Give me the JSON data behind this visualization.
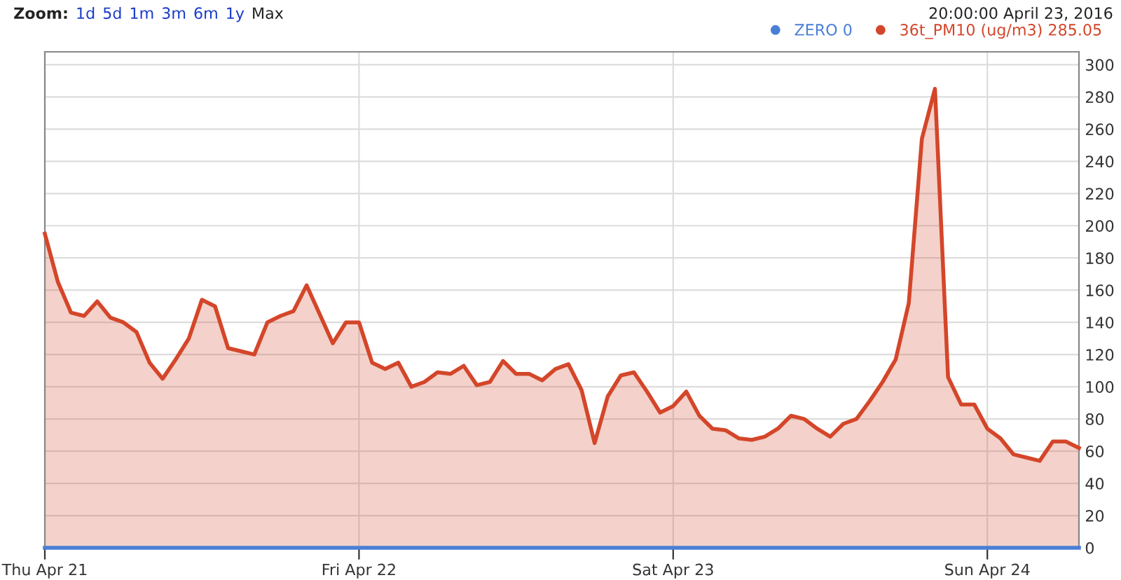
{
  "chart_data": {
    "type": "area",
    "annotations": [
      "Zoom:",
      "1d",
      "5d",
      "1m",
      "3m",
      "6m",
      "1y",
      "Max",
      "20:00:00 April 23, 2016"
    ],
    "x": [
      "2016-04-21T00:00",
      "2016-04-21T01:00",
      "2016-04-21T02:00",
      "2016-04-21T03:00",
      "2016-04-21T04:00",
      "2016-04-21T05:00",
      "2016-04-21T06:00",
      "2016-04-21T07:00",
      "2016-04-21T08:00",
      "2016-04-21T09:00",
      "2016-04-21T10:00",
      "2016-04-21T11:00",
      "2016-04-21T12:00",
      "2016-04-21T13:00",
      "2016-04-21T14:00",
      "2016-04-21T15:00",
      "2016-04-21T16:00",
      "2016-04-21T17:00",
      "2016-04-21T18:00",
      "2016-04-21T19:00",
      "2016-04-21T20:00",
      "2016-04-21T21:00",
      "2016-04-21T22:00",
      "2016-04-21T23:00",
      "2016-04-22T00:00",
      "2016-04-22T01:00",
      "2016-04-22T02:00",
      "2016-04-22T03:00",
      "2016-04-22T04:00",
      "2016-04-22T05:00",
      "2016-04-22T06:00",
      "2016-04-22T07:00",
      "2016-04-22T08:00",
      "2016-04-22T09:00",
      "2016-04-22T10:00",
      "2016-04-22T11:00",
      "2016-04-22T12:00",
      "2016-04-22T13:00",
      "2016-04-22T14:00",
      "2016-04-22T15:00",
      "2016-04-22T16:00",
      "2016-04-22T17:00",
      "2016-04-22T18:00",
      "2016-04-22T19:00",
      "2016-04-22T20:00",
      "2016-04-22T21:00",
      "2016-04-22T22:00",
      "2016-04-22T23:00",
      "2016-04-23T00:00",
      "2016-04-23T01:00",
      "2016-04-23T02:00",
      "2016-04-23T03:00",
      "2016-04-23T04:00",
      "2016-04-23T05:00",
      "2016-04-23T06:00",
      "2016-04-23T07:00",
      "2016-04-23T08:00",
      "2016-04-23T09:00",
      "2016-04-23T10:00",
      "2016-04-23T11:00",
      "2016-04-23T12:00",
      "2016-04-23T13:00",
      "2016-04-23T14:00",
      "2016-04-23T15:00",
      "2016-04-23T16:00",
      "2016-04-23T17:00",
      "2016-04-23T18:00",
      "2016-04-23T19:00",
      "2016-04-23T20:00",
      "2016-04-23T21:00",
      "2016-04-23T22:00",
      "2016-04-23T23:00",
      "2016-04-24T00:00",
      "2016-04-24T01:00",
      "2016-04-24T02:00",
      "2016-04-24T03:00",
      "2016-04-24T04:00",
      "2016-04-24T05:00",
      "2016-04-24T06:00",
      "2016-04-24T07:00"
    ],
    "series": [
      {
        "name": "ZERO 0",
        "color": "#4a7fd6",
        "type": "line",
        "values": [
          0,
          0,
          0,
          0,
          0,
          0,
          0,
          0,
          0,
          0,
          0,
          0,
          0,
          0,
          0,
          0,
          0,
          0,
          0,
          0,
          0,
          0,
          0,
          0,
          0,
          0,
          0,
          0,
          0,
          0,
          0,
          0,
          0,
          0,
          0,
          0,
          0,
          0,
          0,
          0,
          0,
          0,
          0,
          0,
          0,
          0,
          0,
          0,
          0,
          0,
          0,
          0,
          0,
          0,
          0,
          0,
          0,
          0,
          0,
          0,
          0,
          0,
          0,
          0,
          0,
          0,
          0,
          0,
          0,
          0,
          0,
          0,
          0,
          0,
          0,
          0,
          0,
          0,
          0,
          0
        ]
      },
      {
        "name": "36t_PM10 (ug/m3) 285.05",
        "color": "#d4462a",
        "values": [
          195,
          165,
          146,
          144,
          153,
          143,
          140,
          134,
          115,
          105,
          117,
          130,
          154,
          150,
          124,
          122,
          120,
          140,
          144,
          147,
          163,
          145,
          127,
          140,
          140,
          115,
          111,
          115,
          100,
          103,
          109,
          108,
          113,
          101,
          103,
          116,
          108,
          108,
          104,
          111,
          114,
          98,
          65,
          94,
          107,
          109,
          97,
          84,
          88,
          97,
          82,
          74,
          73,
          68,
          67,
          69,
          74,
          82,
          80,
          74,
          69,
          77,
          80,
          91,
          103,
          117,
          152,
          254,
          285.05,
          106,
          89,
          89,
          74,
          68,
          58,
          56,
          54,
          66,
          66,
          62
        ]
      }
    ],
    "xlim": [
      "2016-04-21T00:00",
      "2016-04-24T07:00"
    ],
    "xticks": [
      {
        "value": "2016-04-21",
        "label": "Thu Apr 21"
      },
      {
        "value": "2016-04-22",
        "label": "Fri Apr 22"
      },
      {
        "value": "2016-04-23",
        "label": "Sat Apr 23"
      },
      {
        "value": "2016-04-24",
        "label": "Sun Apr 24"
      }
    ],
    "ylim": [
      0,
      308
    ],
    "yticks": [
      0,
      20,
      40,
      60,
      80,
      100,
      120,
      140,
      160,
      180,
      200,
      220,
      240,
      260,
      280,
      300
    ],
    "grid": true,
    "legend": "top right",
    "marker": "none",
    "line_style": "solid"
  }
}
